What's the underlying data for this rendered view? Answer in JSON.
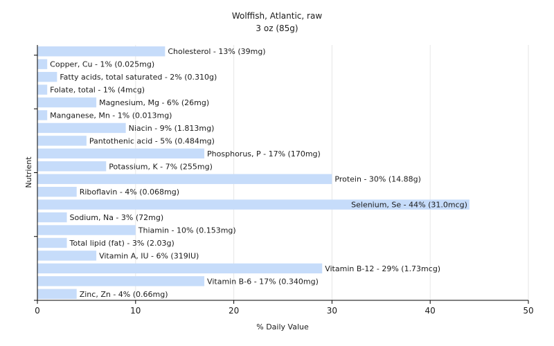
{
  "chart_data": {
    "type": "bar",
    "orientation": "horizontal",
    "title": "Wolffish, Atlantic, raw",
    "subtitle": "3 oz (85g)",
    "xlabel": "% Daily Value",
    "ylabel": "Nutrient",
    "xlim": [
      0,
      50
    ],
    "xticks": [
      "0",
      "10",
      "20",
      "30",
      "40",
      "50"
    ],
    "grid": true,
    "bar_color": "#c6dcfa",
    "categories": [
      "Cholesterol",
      "Copper, Cu",
      "Fatty acids, total saturated",
      "Folate, total",
      "Magnesium, Mg",
      "Manganese, Mn",
      "Niacin",
      "Pantothenic acid",
      "Phosphorus, P",
      "Potassium, K",
      "Protein",
      "Riboflavin",
      "Selenium, Se",
      "Sodium, Na",
      "Thiamin",
      "Total lipid (fat)",
      "Vitamin A, IU",
      "Vitamin B-12",
      "Vitamin B-6",
      "Zinc, Zn"
    ],
    "values": [
      13,
      1,
      2,
      1,
      6,
      1,
      9,
      5,
      17,
      7,
      30,
      4,
      44,
      3,
      10,
      3,
      6,
      29,
      17,
      4
    ],
    "labels": [
      "Cholesterol - 13% (39mg)",
      "Copper, Cu - 1% (0.025mg)",
      "Fatty acids, total saturated - 2% (0.310g)",
      "Folate, total - 1% (4mcg)",
      "Magnesium, Mg - 6% (26mg)",
      "Manganese, Mn - 1% (0.013mg)",
      "Niacin - 9% (1.813mg)",
      "Pantothenic acid - 5% (0.484mg)",
      "Phosphorus, P - 17% (170mg)",
      "Potassium, K - 7% (255mg)",
      "Protein - 30% (14.88g)",
      "Riboflavin - 4% (0.068mg)",
      "Selenium, Se - 44% (31.0mcg)",
      "Sodium, Na - 3% (72mg)",
      "Thiamin - 10% (0.153mg)",
      "Total lipid (fat) - 3% (2.03g)",
      "Vitamin A, IU - 6% (319IU)",
      "Vitamin B-12 - 29% (1.73mcg)",
      "Vitamin B-6 - 17% (0.340mg)",
      "Zinc, Zn - 4% (0.66mg)"
    ]
  }
}
